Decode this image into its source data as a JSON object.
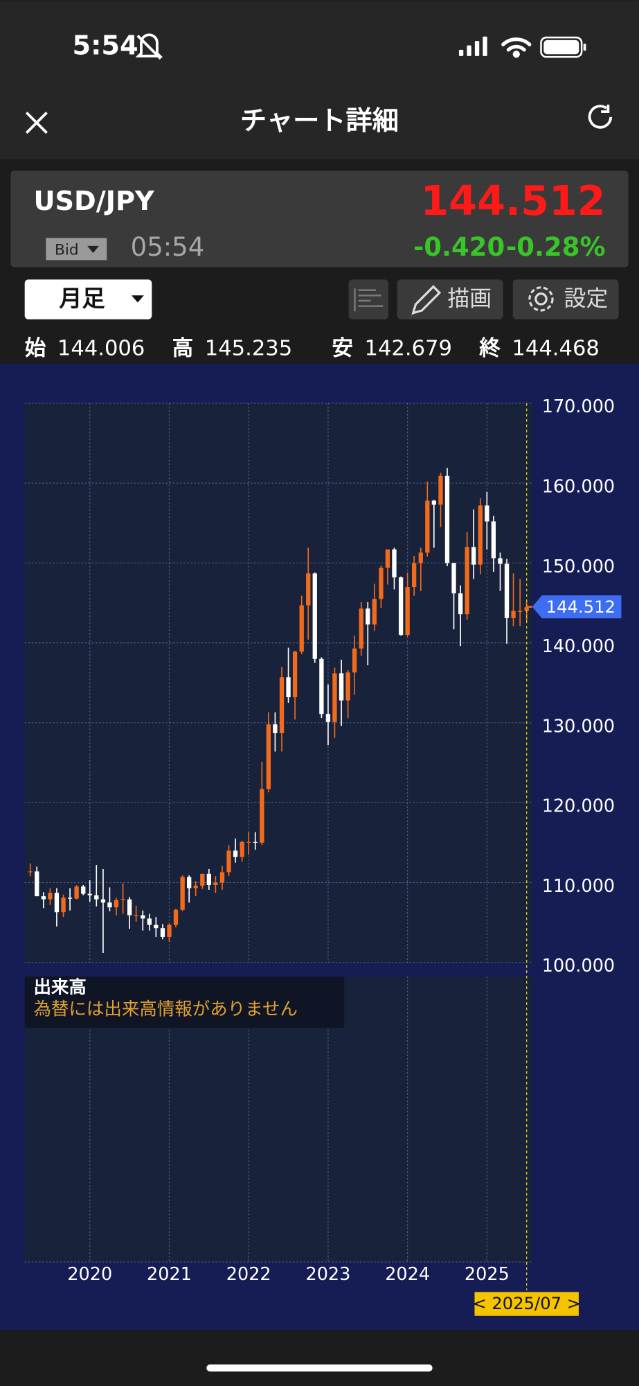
{
  "status_bar": {
    "time": "5:54"
  },
  "header": {
    "title": "チャート詳細"
  },
  "quote": {
    "symbol": "USD/JPY",
    "price": "144.512",
    "side": "Bid",
    "time": "05:54",
    "change": "-0.420",
    "change_pct": "-0.28%"
  },
  "toolbar": {
    "period": "月足",
    "draw": "描画",
    "settings": "設定"
  },
  "ohlc": {
    "open_label": "始",
    "open": "144.006",
    "high_label": "高",
    "high": "145.235",
    "low_label": "安",
    "low": "142.679",
    "close_label": "終",
    "close": "144.468"
  },
  "volume": {
    "title": "出来高",
    "message": "為替には出来高情報がありません"
  },
  "chart_data": {
    "type": "candlestick",
    "up_color": "#f26b1d",
    "down_color": "#ffffff",
    "grid": true,
    "xlim": [
      2019.18,
      2025.57
    ],
    "xticks": [
      2020,
      2021,
      2022,
      2023,
      2024,
      2025
    ],
    "ylim": [
      100,
      170
    ],
    "yticks": [
      {
        "value": 100,
        "label": "100.000"
      },
      {
        "value": 110,
        "label": "110.000"
      },
      {
        "value": 120,
        "label": "120.000"
      },
      {
        "value": 130,
        "label": "130.000"
      },
      {
        "value": 140,
        "label": "140.000"
      },
      {
        "value": 150,
        "label": "150.000"
      },
      {
        "value": 160,
        "label": "160.000"
      },
      {
        "value": 170,
        "label": "170.000"
      }
    ],
    "last": 144.512,
    "cursor": {
      "x": 2025.5,
      "label": "< 2025/07 >"
    },
    "x": [
      2019.25,
      2019.333,
      2019.417,
      2019.5,
      2019.583,
      2019.667,
      2019.75,
      2019.833,
      2019.917,
      2020,
      2020.083,
      2020.167,
      2020.25,
      2020.333,
      2020.417,
      2020.5,
      2020.583,
      2020.667,
      2020.75,
      2020.833,
      2020.917,
      2021,
      2021.083,
      2021.167,
      2021.25,
      2021.333,
      2021.417,
      2021.5,
      2021.583,
      2021.667,
      2021.75,
      2021.833,
      2021.917,
      2022,
      2022.083,
      2022.167,
      2022.25,
      2022.333,
      2022.417,
      2022.5,
      2022.583,
      2022.667,
      2022.75,
      2022.833,
      2022.917,
      2023,
      2023.083,
      2023.167,
      2023.25,
      2023.333,
      2023.417,
      2023.5,
      2023.583,
      2023.667,
      2023.75,
      2023.833,
      2023.917,
      2024,
      2024.083,
      2024.167,
      2024.25,
      2024.333,
      2024.417,
      2024.5,
      2024.583,
      2024.667,
      2024.75,
      2024.833,
      2024.917,
      2025,
      2025.083,
      2025.167,
      2025.25,
      2025.333,
      2025.417,
      2025.5
    ],
    "open": [
      111.3,
      111.4,
      108.3,
      107.9,
      108.7,
      106.3,
      108.1,
      108.0,
      109.5,
      108.6,
      108.4,
      107.9,
      107.5,
      106.9,
      107.8,
      107.9,
      105.9,
      105.9,
      105.5,
      104.7,
      104.3,
      103.2,
      104.7,
      106.6,
      110.7,
      109.3,
      109.6,
      111.1,
      109.7,
      110.0,
      111.3,
      114.0,
      113.2,
      115.1,
      115.1,
      115.0,
      121.7,
      129.8,
      128.7,
      135.7,
      133.2,
      138.9,
      144.7,
      148.7,
      138.0,
      131.1,
      130.1,
      136.2,
      132.8,
      136.3,
      139.3,
      144.3,
      142.3,
      145.5,
      149.4,
      151.7,
      148.2,
      141.0,
      147.0,
      150.0,
      151.3,
      157.8,
      157.3,
      160.9,
      150.0,
      146.2,
      143.6,
      152.0,
      149.8,
      157.2,
      155.2,
      150.6,
      149.9,
      143.1,
      144.0,
      144.006
    ],
    "high": [
      112.4,
      112.0,
      108.8,
      109.3,
      109.3,
      108.5,
      109.3,
      109.7,
      109.7,
      110.3,
      112.2,
      111.7,
      109.4,
      108.1,
      109.9,
      108.2,
      107.1,
      106.5,
      106.1,
      105.7,
      104.8,
      104.9,
      106.7,
      110.9,
      110.9,
      110.2,
      111.1,
      111.7,
      110.8,
      112.1,
      114.7,
      115.5,
      115.2,
      116.3,
      116.3,
      125.1,
      131.3,
      131.3,
      137.0,
      139.4,
      139.0,
      145.9,
      151.9,
      148.8,
      138.2,
      134.8,
      136.9,
      137.9,
      136.6,
      140.9,
      145.1,
      145.1,
      147.4,
      149.7,
      151.7,
      151.9,
      148.3,
      148.8,
      150.9,
      151.9,
      160.2,
      157.9,
      161.3,
      161.9,
      150.0,
      147.2,
      153.9,
      156.7,
      158.1,
      158.9,
      155.9,
      151.3,
      150.5,
      148.7,
      148.0,
      145.235
    ],
    "low": [
      110.8,
      108.3,
      106.8,
      107.2,
      104.5,
      105.7,
      106.5,
      107.9,
      108.4,
      107.6,
      107.0,
      101.2,
      106.4,
      105.9,
      106.1,
      104.2,
      105.1,
      104.0,
      104.0,
      103.2,
      102.9,
      102.6,
      104.4,
      106.4,
      107.5,
      108.3,
      109.2,
      109.1,
      108.7,
      109.1,
      110.8,
      112.5,
      112.6,
      113.5,
      114.1,
      114.7,
      121.3,
      126.4,
      126.4,
      132.5,
      130.4,
      138.6,
      140.4,
      137.5,
      130.6,
      127.2,
      128.1,
      129.6,
      130.6,
      133.5,
      138.4,
      137.2,
      141.5,
      144.4,
      147.3,
      146.7,
      140.9,
      140.8,
      145.9,
      146.5,
      150.8,
      151.9,
      154.5,
      149.6,
      141.7,
      139.6,
      142.9,
      148.0,
      148.6,
      151.7,
      148.9,
      146.5,
      139.9,
      142.1,
      142.1,
      142.679
    ],
    "close": [
      111.4,
      108.3,
      107.9,
      108.7,
      106.3,
      108.1,
      108.0,
      109.5,
      108.6,
      108.4,
      107.9,
      107.5,
      106.9,
      107.8,
      107.9,
      105.9,
      105.9,
      105.5,
      104.7,
      104.3,
      103.2,
      104.7,
      106.6,
      110.7,
      109.3,
      109.6,
      111.1,
      109.7,
      110.0,
      111.3,
      114.0,
      113.2,
      115.1,
      115.1,
      115.0,
      121.7,
      129.8,
      128.7,
      135.7,
      133.2,
      138.9,
      144.7,
      148.7,
      138.0,
      131.1,
      130.1,
      136.2,
      132.8,
      136.3,
      139.3,
      144.3,
      142.3,
      145.5,
      149.4,
      151.7,
      148.2,
      141.0,
      147.0,
      150.0,
      151.3,
      157.8,
      157.3,
      160.9,
      150.0,
      146.2,
      143.6,
      152.0,
      149.8,
      157.2,
      155.2,
      150.6,
      149.9,
      143.1,
      144.0,
      144.0,
      144.468
    ]
  }
}
